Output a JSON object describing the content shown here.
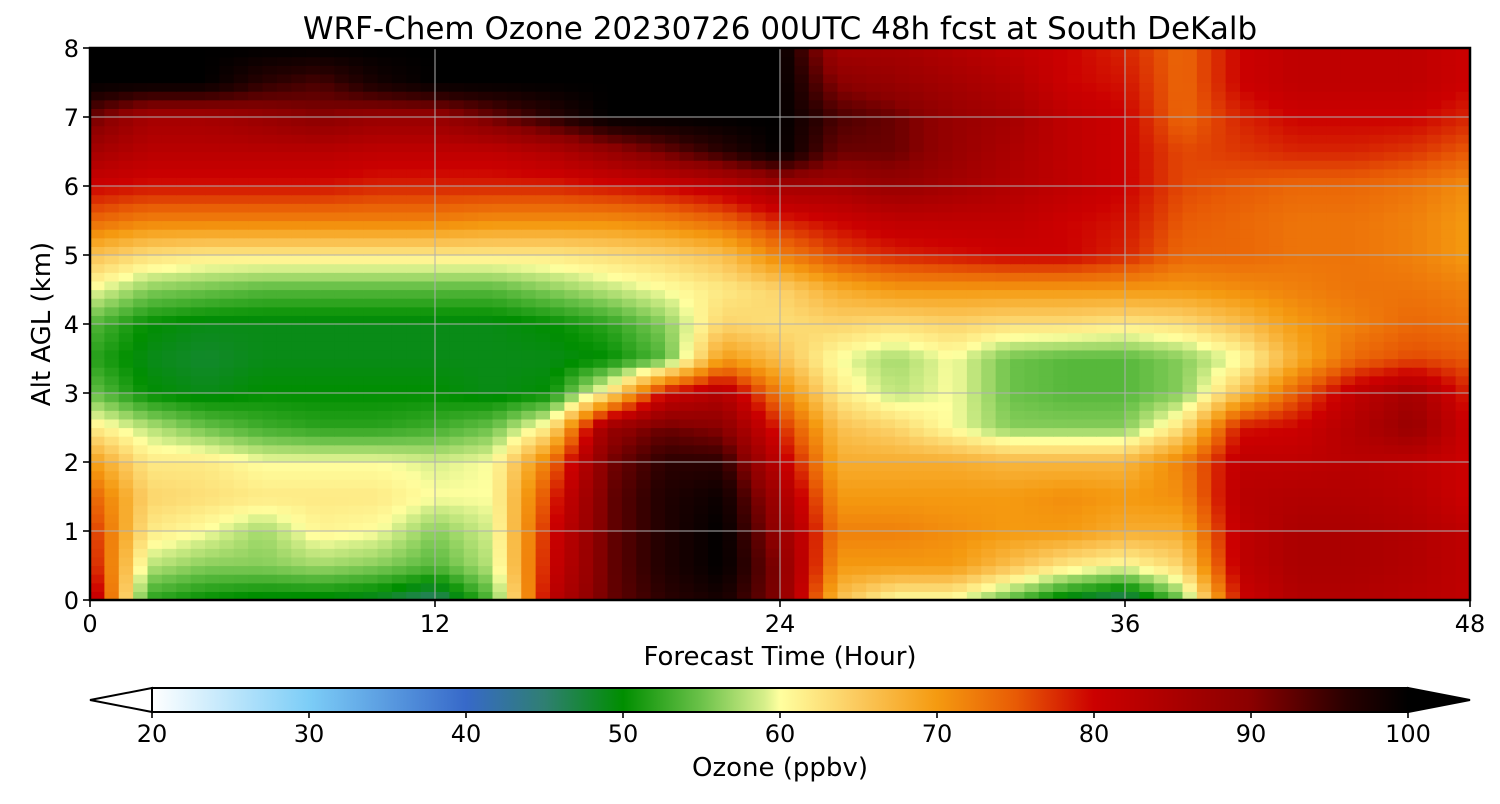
{
  "chart_data": {
    "type": "heatmap",
    "title": "WRF-Chem Ozone  20230726 00UTC 48h fcst at South DeKalb",
    "xlabel": "Forecast Time (Hour)",
    "ylabel": "Alt AGL (km)",
    "xlim": [
      0,
      48
    ],
    "ylim": [
      0,
      8
    ],
    "x_ticks": [
      0,
      12,
      24,
      36,
      48
    ],
    "y_ticks": [
      0,
      1,
      2,
      3,
      4,
      5,
      6,
      7,
      8
    ],
    "grid": true,
    "x": [
      0,
      2,
      4,
      6,
      8,
      10,
      12,
      14,
      16,
      18,
      20,
      22,
      24,
      26,
      28,
      30,
      32,
      34,
      36,
      38,
      40,
      42,
      44,
      46,
      48
    ],
    "y": [
      0,
      0.5,
      1,
      1.5,
      2,
      2.5,
      3,
      3.5,
      4,
      4.5,
      5,
      5.5,
      6,
      6.5,
      7,
      7.5,
      8
    ],
    "z": [
      [
        85,
        52,
        50,
        49,
        49,
        48,
        45,
        54,
        82,
        92,
        96,
        98,
        90,
        66,
        60,
        60,
        54,
        48,
        45,
        55,
        80,
        84,
        84,
        83,
        82
      ],
      [
        80,
        58,
        56,
        56,
        57,
        56,
        54,
        58,
        80,
        92,
        97,
        100,
        90,
        70,
        70,
        70,
        66,
        62,
        60,
        64,
        82,
        85,
        85,
        84,
        82
      ],
      [
        78,
        62,
        60,
        57,
        61,
        60,
        56,
        59,
        79,
        92,
        97,
        100,
        88,
        72,
        72,
        71,
        70,
        70,
        68,
        68,
        82,
        85,
        85,
        84,
        82
      ],
      [
        75,
        64,
        63,
        62,
        62,
        62,
        60,
        60,
        77,
        92,
        97,
        99,
        86,
        70,
        70,
        70,
        70,
        71,
        70,
        71,
        83,
        84,
        84,
        83,
        80
      ],
      [
        70,
        62,
        62,
        60,
        60,
        60,
        59,
        60,
        73,
        91,
        96,
        96,
        82,
        68,
        68,
        68,
        67,
        67,
        67,
        72,
        82,
        82,
        83,
        82,
        80
      ],
      [
        62,
        58,
        55,
        53,
        52,
        52,
        53,
        55,
        62,
        88,
        92,
        90,
        78,
        66,
        64,
        60,
        56,
        56,
        56,
        63,
        79,
        80,
        84,
        88,
        80
      ],
      [
        55,
        50,
        49,
        50,
        50,
        50,
        50,
        49,
        50,
        62,
        80,
        84,
        72,
        62,
        58,
        60,
        55,
        54,
        54,
        56,
        66,
        75,
        82,
        86,
        78
      ],
      [
        52,
        49,
        48,
        49,
        49,
        49,
        49,
        49,
        49,
        50,
        54,
        70,
        66,
        60,
        57,
        60,
        55,
        54,
        54,
        56,
        60,
        68,
        74,
        76,
        75
      ],
      [
        54,
        50,
        49,
        49,
        49,
        49,
        49,
        49,
        50,
        52,
        56,
        64,
        63,
        64,
        63,
        64,
        63,
        63,
        62,
        63,
        66,
        70,
        72,
        74,
        73
      ],
      [
        60,
        56,
        55,
        54,
        54,
        54,
        54,
        54,
        56,
        58,
        60,
        62,
        64,
        68,
        70,
        70,
        70,
        70,
        70,
        70,
        71,
        72,
        73,
        73,
        72
      ],
      [
        66,
        63,
        62,
        62,
        62,
        62,
        62,
        62,
        62,
        63,
        64,
        66,
        72,
        76,
        78,
        79,
        80,
        80,
        78,
        74,
        74,
        73,
        73,
        72,
        70
      ],
      [
        74,
        72,
        72,
        72,
        72,
        72,
        72,
        71,
        71,
        71,
        72,
        74,
        78,
        80,
        82,
        82,
        82,
        80,
        79,
        75,
        74,
        73,
        73,
        72,
        70
      ],
      [
        80,
        79,
        79,
        79,
        79,
        78,
        78,
        78,
        78,
        79,
        80,
        82,
        86,
        86,
        88,
        86,
        84,
        82,
        80,
        76,
        75,
        74,
        74,
        73,
        71
      ],
      [
        86,
        83,
        83,
        83,
        83,
        82,
        82,
        82,
        84,
        88,
        92,
        96,
        100,
        92,
        92,
        88,
        85,
        82,
        80,
        76,
        77,
        78,
        78,
        77,
        75
      ],
      [
        92,
        86,
        86,
        88,
        90,
        88,
        88,
        92,
        96,
        100,
        100,
        100,
        100,
        94,
        92,
        88,
        86,
        82,
        80,
        74,
        78,
        80,
        80,
        80,
        78
      ],
      [
        100,
        100,
        100,
        96,
        94,
        98,
        100,
        100,
        100,
        100,
        100,
        100,
        100,
        90,
        88,
        86,
        84,
        80,
        79,
        74,
        80,
        82,
        82,
        82,
        80
      ],
      [
        100,
        100,
        100,
        100,
        100,
        100,
        100,
        100,
        100,
        100,
        100,
        100,
        100,
        86,
        86,
        84,
        82,
        80,
        78,
        74,
        80,
        82,
        82,
        82,
        80
      ]
    ],
    "colorbar": {
      "label": "Ozone  (ppbv)",
      "min": 20,
      "max": 100,
      "ticks": [
        20,
        30,
        40,
        50,
        60,
        70,
        80,
        90,
        100
      ],
      "extend": "both",
      "under_color": "#ffffff",
      "over_color": "#000000",
      "stops": [
        [
          20,
          "#ffffff"
        ],
        [
          30,
          "#7ccdf7"
        ],
        [
          40,
          "#3769c9"
        ],
        [
          45,
          "#2f7f72"
        ],
        [
          50,
          "#008e00"
        ],
        [
          55,
          "#6cc24a"
        ],
        [
          59,
          "#d6ef8a"
        ],
        [
          60,
          "#ffff9f"
        ],
        [
          65,
          "#fbc95d"
        ],
        [
          70,
          "#f59a10"
        ],
        [
          75,
          "#e85b05"
        ],
        [
          80,
          "#cc0000"
        ],
        [
          90,
          "#8a0000"
        ],
        [
          96,
          "#2a0000"
        ],
        [
          100,
          "#000000"
        ]
      ]
    }
  }
}
